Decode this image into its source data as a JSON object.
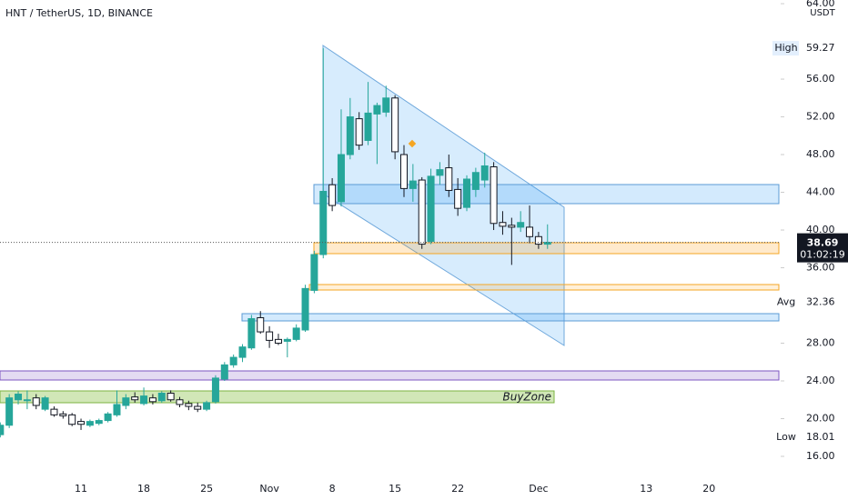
{
  "chart_data": {
    "type": "candlestick",
    "title": "HNT / TetherUS, 1D, BINANCE",
    "currency": "USDT",
    "categories": [
      null,
      null,
      null,
      null,
      null,
      null,
      null,
      null,
      null,
      "11",
      null,
      null,
      null,
      null,
      null,
      null,
      "18",
      null,
      null,
      null,
      null,
      null,
      null,
      "25",
      null,
      null,
      null,
      null,
      null,
      null,
      "Nov",
      null,
      null,
      null,
      null,
      null,
      null,
      "8",
      null,
      null,
      null,
      null,
      null,
      null,
      "15",
      null,
      null,
      null,
      null,
      null,
      null,
      "22",
      null,
      null,
      null,
      null,
      null,
      null,
      null,
      null,
      "Dec",
      null,
      null,
      null,
      null,
      null,
      null,
      null,
      null,
      null,
      null,
      null,
      "13",
      null,
      null,
      null,
      null,
      null,
      null,
      "20",
      null,
      null,
      null,
      null,
      null,
      null,
      null
    ],
    "open": [
      18.3,
      19.3,
      22.0,
      22.0,
      22.2,
      21.0,
      21.0,
      20.5,
      20.4,
      19.7,
      19.3,
      19.5,
      19.8,
      20.4,
      21.4,
      22.3,
      21.6,
      22.2,
      21.9,
      22.7,
      22.0,
      21.6,
      21.3,
      21.0,
      21.8,
      24.2,
      25.7,
      26.5,
      27.5,
      30.7,
      29.2,
      28.4,
      28.2,
      28.4,
      29.4,
      33.6,
      37.4,
      44.8,
      43.0,
      48.0,
      51.8,
      49.5,
      52.3,
      52.5,
      54.0,
      48.0,
      44.4,
      45.3,
      38.8,
      45.8,
      46.6,
      44.3,
      42.4,
      44.3,
      45.3,
      46.7,
      40.8,
      40.5,
      40.3,
      40.3,
      39.3,
      38.5,
      null,
      null,
      null,
      null,
      null,
      null,
      null,
      null,
      null,
      null,
      null,
      null,
      null,
      null,
      null,
      null,
      null,
      null,
      null,
      null,
      null,
      null,
      null,
      null,
      null
    ],
    "high": [
      19.6,
      22.6,
      22.9,
      23.0,
      22.6,
      22.4,
      21.3,
      20.8,
      20.6,
      20.0,
      19.9,
      20.0,
      20.7,
      23.0,
      22.6,
      22.8,
      23.3,
      22.6,
      22.9,
      23.0,
      22.3,
      21.9,
      21.7,
      21.9,
      24.6,
      26.0,
      26.8,
      27.9,
      31.0,
      31.4,
      29.8,
      29.0,
      28.6,
      30.0,
      34.2,
      37.8,
      59.27,
      45.5,
      52.8,
      54.0,
      52.5,
      55.7,
      53.5,
      55.3,
      54.3,
      49.0,
      47.0,
      45.6,
      46.5,
      47.2,
      48.0,
      45.5,
      45.8,
      46.6,
      48.2,
      47.2,
      42.0,
      41.3,
      42.0,
      42.6,
      39.8,
      40.6,
      null,
      null,
      null,
      null,
      null,
      null,
      null,
      null,
      null,
      null,
      null,
      null,
      null,
      null,
      null,
      null,
      null,
      null,
      null,
      null,
      null,
      null,
      null,
      null,
      null
    ],
    "low": [
      18.01,
      19.0,
      21.5,
      21.0,
      21.0,
      20.8,
      20.2,
      20.0,
      19.2,
      18.8,
      19.1,
      19.3,
      19.6,
      20.2,
      21.0,
      21.7,
      21.4,
      21.5,
      21.7,
      21.8,
      21.2,
      20.9,
      20.7,
      20.8,
      21.6,
      24.0,
      25.4,
      26.0,
      27.3,
      29.0,
      27.5,
      27.8,
      26.5,
      28.2,
      29.2,
      33.3,
      37.0,
      42.0,
      42.5,
      47.5,
      48.5,
      49.0,
      47.0,
      52.0,
      47.5,
      43.5,
      43.0,
      38.0,
      38.5,
      44.8,
      43.5,
      41.5,
      42.0,
      43.5,
      44.5,
      40.0,
      39.5,
      36.3,
      39.8,
      38.6,
      38.0,
      38.0,
      null,
      null,
      null,
      null,
      null,
      null,
      null,
      null,
      null,
      null,
      null,
      null,
      null,
      null,
      null,
      null,
      null,
      null,
      null,
      null,
      null,
      null,
      null,
      null,
      null
    ],
    "close": [
      19.3,
      22.2,
      22.6,
      22.0,
      21.4,
      22.2,
      20.4,
      20.3,
      19.4,
      19.4,
      19.7,
      19.8,
      20.5,
      21.5,
      22.2,
      22.0,
      22.4,
      21.8,
      22.7,
      22.0,
      21.5,
      21.3,
      21.0,
      21.7,
      24.3,
      25.7,
      26.5,
      27.6,
      30.6,
      29.2,
      28.3,
      28.0,
      28.4,
      29.6,
      33.8,
      37.4,
      44.1,
      42.6,
      48.0,
      52.0,
      49.0,
      52.4,
      53.2,
      54.0,
      48.3,
      44.4,
      45.2,
      38.5,
      45.7,
      46.4,
      44.2,
      42.3,
      45.4,
      46.1,
      46.8,
      40.7,
      40.4,
      40.3,
      40.8,
      39.3,
      38.5,
      38.69,
      null,
      null,
      null,
      null,
      null,
      null,
      null,
      null,
      null,
      null,
      null,
      null,
      null,
      null,
      null,
      null,
      null,
      null,
      null,
      null,
      null,
      null,
      null,
      null,
      null
    ],
    "up_color": "#26a69a",
    "down_color": "#ffffff",
    "ylim": [
      13.59,
      64.39
    ],
    "yticks": [
      {
        "value": 16,
        "label": "16.00"
      },
      {
        "value": 20,
        "label": "20.00"
      },
      {
        "value": 24,
        "label": "24.00"
      },
      {
        "value": 28,
        "label": "28.00"
      },
      {
        "value": 36,
        "label": "36.00"
      },
      {
        "value": 40,
        "label": "40.00"
      },
      {
        "value": 44,
        "label": "44.00"
      },
      {
        "value": 48,
        "label": "48.00"
      },
      {
        "value": 52,
        "label": "52.00"
      },
      {
        "value": 56,
        "label": "56.00"
      },
      {
        "value": 64,
        "label": "64.00"
      }
    ],
    "markers": [
      {
        "label": "High",
        "value": 59.27
      },
      {
        "label": "Avg",
        "value": 32.36
      },
      {
        "label": "Low",
        "value": 18.01
      }
    ],
    "last_price": 38.69,
    "countdown": "01:02:19",
    "annotation": "BuyZone"
  }
}
